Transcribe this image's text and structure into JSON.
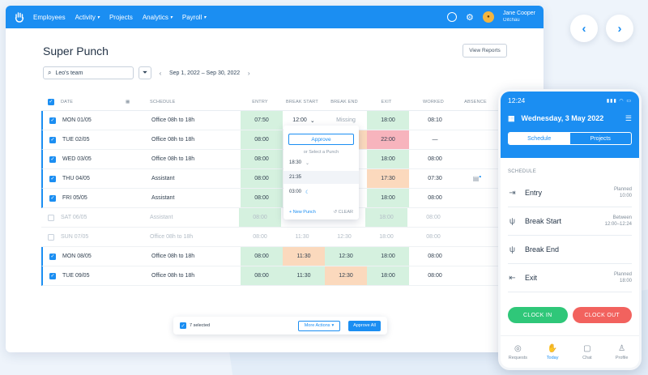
{
  "topbar": {
    "nav": [
      "Employees",
      "Activity",
      "Projects",
      "Analytics",
      "Payroll"
    ],
    "nav_carets": [
      false,
      true,
      false,
      true,
      true
    ],
    "user_name": "Jane Cooper",
    "user_company": "Oitchau",
    "accent": "#1b8ef2"
  },
  "page": {
    "title": "Super Punch",
    "view_reports": "View Reports",
    "team_filter": "Leo's team",
    "date_range": "Sep 1, 2022 – Sep 30, 2022"
  },
  "table": {
    "headers": [
      "DATE",
      "SCHEDULE",
      "ENTRY",
      "BREAK START",
      "BREAK END",
      "EXIT",
      "WORKED",
      "ABSENCE"
    ],
    "rows": [
      {
        "date": "MON 01/05",
        "schedule": "Office 08h to 18h",
        "entry": "07:50",
        "bstart": "12:00",
        "bend": "Missing",
        "exit": "18:00",
        "worked": "08:10",
        "checked": true,
        "muted": false
      },
      {
        "date": "TUE 02/05",
        "schedule": "Office 08h to 18h",
        "entry": "08:00",
        "bstart": "",
        "bend": "",
        "exit": "22:00",
        "worked": "—",
        "checked": true,
        "muted": false
      },
      {
        "date": "WED 03/05",
        "schedule": "Office 08h to 18h",
        "entry": "08:00",
        "bstart": "",
        "bend": "",
        "exit": "18:00",
        "worked": "08:00",
        "checked": true,
        "muted": false
      },
      {
        "date": "THU 04/05",
        "schedule": "Assistant",
        "entry": "08:00",
        "bstart": "",
        "bend": "",
        "exit": "17:30",
        "worked": "07:30",
        "checked": true,
        "muted": false
      },
      {
        "date": "FRI 05/05",
        "schedule": "Assistant",
        "entry": "08:00",
        "bstart": "",
        "bend": "",
        "exit": "18:00",
        "worked": "08:00",
        "checked": true,
        "muted": false
      },
      {
        "date": "SAT 06/05",
        "schedule": "Assistant",
        "entry": "08:00",
        "bstart": "",
        "bend": "",
        "exit": "18:00",
        "worked": "08:00",
        "checked": false,
        "muted": true
      },
      {
        "date": "SUN 07/05",
        "schedule": "Office 08h to 18h",
        "entry": "08:00",
        "bstart": "11:30",
        "bend": "12:30",
        "exit": "18:00",
        "worked": "08:00",
        "checked": false,
        "muted": true
      },
      {
        "date": "MON 08/05",
        "schedule": "Office 08h to 18h",
        "entry": "08:00",
        "bstart": "11:30",
        "bend": "12:30",
        "exit": "18:00",
        "worked": "08:00",
        "checked": true,
        "muted": false
      },
      {
        "date": "TUE 09/05",
        "schedule": "Office 08h to 18h",
        "entry": "08:00",
        "bstart": "11:30",
        "bend": "12:30",
        "exit": "18:00",
        "worked": "08:00",
        "checked": true,
        "muted": false
      }
    ]
  },
  "popup": {
    "approve": "Approve",
    "or_select": "or Select a Punch",
    "options": [
      "18:30",
      "21:35",
      "03:00"
    ],
    "new_punch": "+ New Punch",
    "clear": "CLEAR"
  },
  "bulk": {
    "selected": "7 selected",
    "more_actions": "More Actions",
    "approve_all": "Approve All"
  },
  "phone": {
    "time": "12:24",
    "date": "Wednesday, 3 May 2022",
    "tabs": [
      "Schedule",
      "Projects"
    ],
    "section": "SCHEDULE",
    "items": [
      {
        "label": "Entry",
        "meta1": "Planned",
        "meta2": "10:00"
      },
      {
        "label": "Break Start",
        "meta1": "Between",
        "meta2": "12:00–12:24"
      },
      {
        "label": "Break End",
        "meta1": "",
        "meta2": ""
      },
      {
        "label": "Exit",
        "meta1": "Planned",
        "meta2": "18:00"
      }
    ],
    "clock_in": "CLOCK IN",
    "clock_out": "CLOCK OUT",
    "nav": [
      "Requests",
      "Today",
      "Chat",
      "Profile"
    ]
  }
}
